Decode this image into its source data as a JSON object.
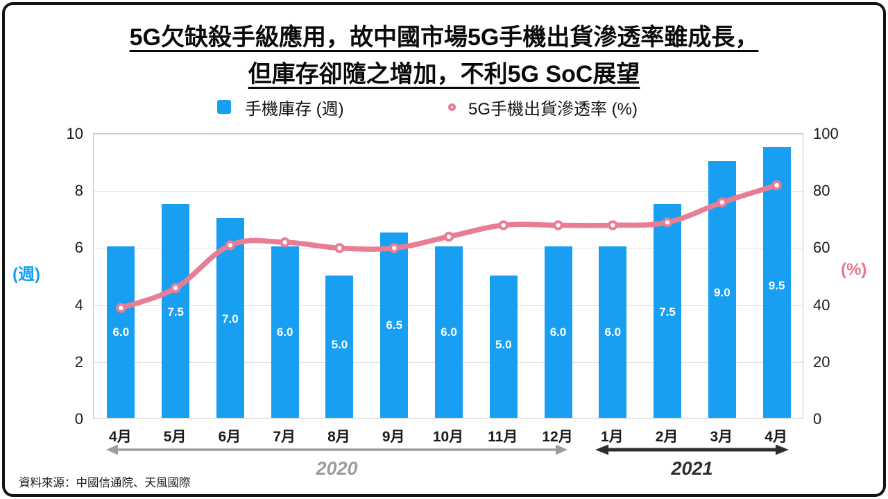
{
  "title": {
    "line1": "5G欠缺殺手級應用，故中國市場5G手機出貨滲透率雖成長，",
    "line2": "但庫存卻隨之增加，不利5G SoC展望"
  },
  "legend": {
    "bar_label": "手機庫存 (週)",
    "line_label": "5G手機出貨滲透率 (%)"
  },
  "chart_data": {
    "type": "bar+line combo",
    "categories": [
      "4月",
      "5月",
      "6月",
      "7月",
      "8月",
      "9月",
      "10月",
      "11月",
      "12月",
      "1月",
      "2月",
      "3月",
      "4月"
    ],
    "series": [
      {
        "name": "手機庫存 (週)",
        "type": "bar",
        "axis": "left",
        "values": [
          6.0,
          7.5,
          7.0,
          6.0,
          5.0,
          6.5,
          6.0,
          5.0,
          6.0,
          6.0,
          7.5,
          9.0,
          9.5
        ]
      },
      {
        "name": "5G手機出貨滲透率 (%)",
        "type": "line",
        "axis": "right",
        "values": [
          39,
          46,
          61,
          62,
          60,
          60,
          64,
          68,
          68,
          68,
          69,
          76,
          82
        ]
      }
    ],
    "left_axis": {
      "label": "(週)",
      "ticks": [
        0,
        2,
        4,
        6,
        8,
        10
      ],
      "range": [
        0,
        10
      ]
    },
    "right_axis": {
      "label": "(%)",
      "ticks": [
        0,
        20,
        40,
        60,
        80,
        100
      ],
      "range": [
        0,
        100
      ]
    },
    "grid": true,
    "legend_position": "top"
  },
  "periods": [
    {
      "label": "2020",
      "start_index": 0,
      "end_index": 8
    },
    {
      "label": "2021",
      "start_index": 9,
      "end_index": 12
    }
  ],
  "source": "資料來源：中國信通院、天風國際",
  "colors": {
    "bar_blue": "#189FF2",
    "line_pink": "#E87E93",
    "pink_text": "#EE7189",
    "gray_period": "#9C9C9C",
    "dark_period": "#2E2E2E"
  }
}
